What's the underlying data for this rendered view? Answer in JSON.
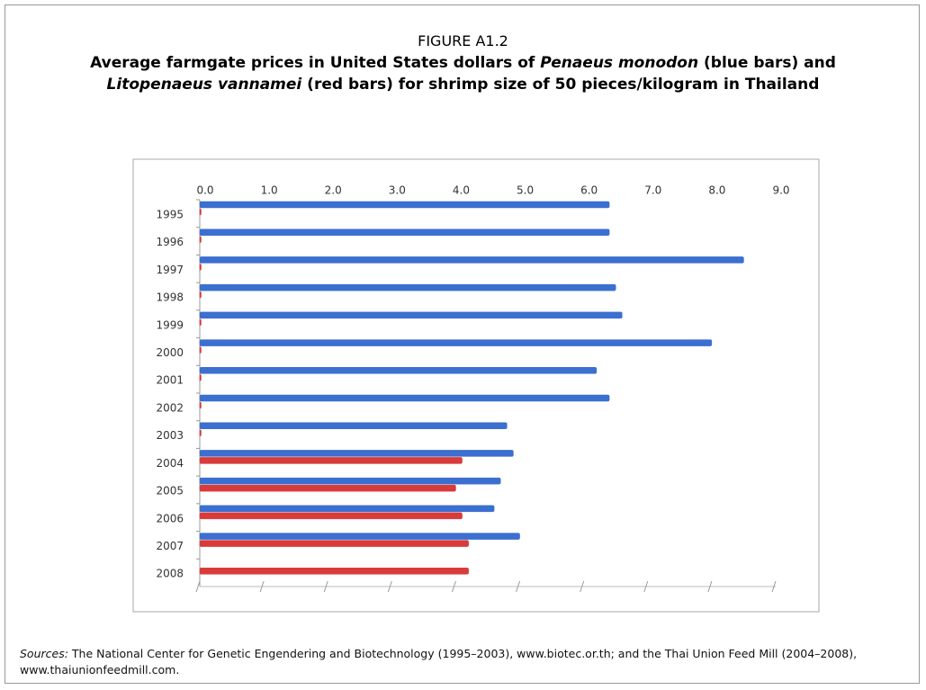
{
  "chart_data": {
    "type": "hbar",
    "figure_label": "FIGURE A1.2",
    "title_lines": [
      [
        {
          "text": "Average farmgate prices in United States dollars of "
        },
        {
          "text": "Penaeus monodon",
          "italic": true
        },
        {
          "text": " (blue bars) and"
        }
      ],
      [
        {
          "text": "Litopenaeus vannamei",
          "italic": true
        },
        {
          "text": " (red bars) for shrimp size of 50 pieces/kilogram in Thailand"
        }
      ]
    ],
    "categories": [
      "1995",
      "1996",
      "1997",
      "1998",
      "1999",
      "2000",
      "2001",
      "2002",
      "2003",
      "2004",
      "2005",
      "2006",
      "2007",
      "2008"
    ],
    "series": [
      {
        "color": "#3b6fd0",
        "values": [
          6.4,
          6.4,
          8.5,
          6.5,
          6.6,
          8.0,
          6.2,
          6.4,
          4.8,
          4.9,
          4.7,
          4.6,
          5.0,
          null
        ]
      },
      {
        "color": "#d93b3b",
        "values": [
          0,
          0,
          0,
          0,
          0,
          0,
          0,
          0,
          0,
          4.1,
          4.0,
          4.1,
          4.2,
          4.2
        ]
      }
    ],
    "xlim": [
      0,
      9
    ],
    "xticks": [
      {
        "value": 0,
        "label": "0.0"
      },
      {
        "value": 1,
        "label": "1.0"
      },
      {
        "value": 2,
        "label": "2.0"
      },
      {
        "value": 3,
        "label": "3.0"
      },
      {
        "value": 4,
        "label": "4.0"
      },
      {
        "value": 5,
        "label": "5.0"
      },
      {
        "value": 6,
        "label": "6.0"
      },
      {
        "value": 7,
        "label": "7.0"
      },
      {
        "value": 8,
        "label": "8.0"
      },
      {
        "value": 9,
        "label": "9.0"
      }
    ],
    "source_label": "Sources:",
    "source": " The National Center for Genetic Engendering and Biotechnology (1995–2003), www.biotec.or.th; and the Thai Union Feed Mill (2004–2008), www.thaiunionfeedmill.com."
  }
}
